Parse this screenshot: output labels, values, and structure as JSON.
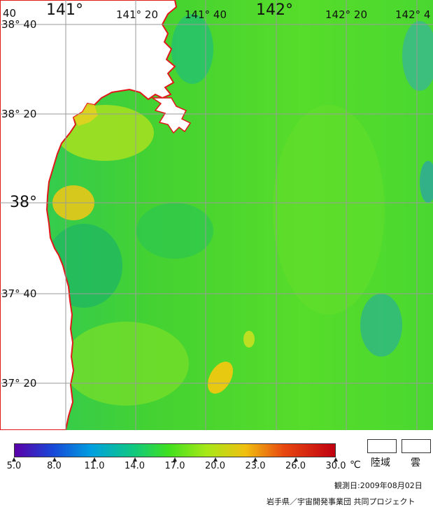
{
  "lat_labels": [
    {
      "text": "38°  40"
    },
    {
      "text": "38°  20"
    },
    {
      "text": "38°"
    },
    {
      "text": "37°  40"
    },
    {
      "text": "37°  20"
    }
  ],
  "lon_labels": [
    {
      "text": "40"
    },
    {
      "text": "141°"
    },
    {
      "text": "141°  20"
    },
    {
      "text": "141°  40"
    },
    {
      "text": "142°"
    },
    {
      "text": "142°  20"
    },
    {
      "text": "142°  4"
    }
  ],
  "legend": {
    "ticks": [
      "5.0",
      "8.0",
      "11.0",
      "14.0",
      "17.0",
      "20.0",
      "23.0",
      "26.0",
      "30.0"
    ],
    "unit": "℃",
    "colors": [
      "#5a00a8",
      "#1040d8",
      "#00a0e0",
      "#10c880",
      "#40e020",
      "#a8e818",
      "#f0c010",
      "#e84810",
      "#c00010"
    ],
    "land_label": "陸域",
    "cloud_label": "雲"
  },
  "observation_date": "観測日:2009年08月02日",
  "credit": "岩手県／宇宙開発事業団  共同プロジェクト",
  "map_colors": {
    "sea_main": "#4ad82a",
    "sea_east": "#5ee02a",
    "sea_cool": "#22c85a",
    "sea_warm": "#b8e020",
    "sea_hot": "#f0c010",
    "coastline": "#e01818",
    "land": "#ffffff",
    "grid": "#a0a0a0"
  }
}
